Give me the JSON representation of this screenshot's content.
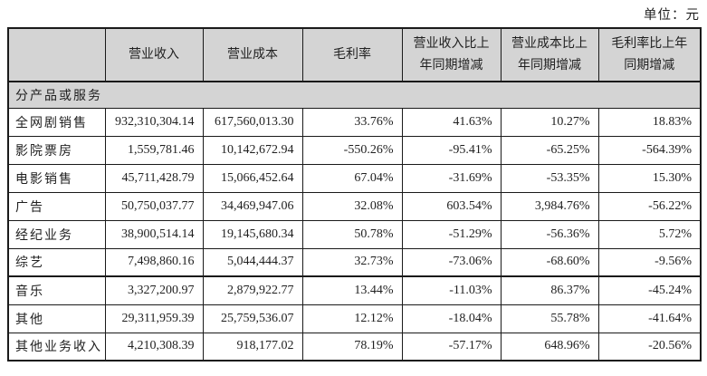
{
  "unit_label": "单位：元",
  "colors": {
    "header_bg": "#d4d4d4",
    "border_color": "#1a1a1a",
    "text_color": "#1f1f1f",
    "page_bg": "#ffffff"
  },
  "table": {
    "headers": [
      "",
      "营业收入",
      "营业成本",
      "毛利率",
      "营业收入比上\n年同期增减",
      "营业成本比上\n年同期增减",
      "毛利率比上年\n同期增减"
    ],
    "section_header": "分产品或服务",
    "rows": [
      {
        "label": "全网剧销售",
        "revenue": "932,310,304.14",
        "cost": "617,560,013.30",
        "margin": "33.76%",
        "revenue_yoy": "41.63%",
        "cost_yoy": "10.27%",
        "margin_yoy": "18.83%"
      },
      {
        "label": "影院票房",
        "revenue": "1,559,781.46",
        "cost": "10,142,672.94",
        "margin": "-550.26%",
        "revenue_yoy": "-95.41%",
        "cost_yoy": "-65.25%",
        "margin_yoy": "-564.39%"
      },
      {
        "label": "电影销售",
        "revenue": "45,711,428.79",
        "cost": "15,066,452.64",
        "margin": "67.04%",
        "revenue_yoy": "-31.69%",
        "cost_yoy": "-53.35%",
        "margin_yoy": "15.30%"
      },
      {
        "label": "广告",
        "revenue": "50,750,037.77",
        "cost": "34,469,947.06",
        "margin": "32.08%",
        "revenue_yoy": "603.54%",
        "cost_yoy": "3,984.76%",
        "margin_yoy": "-56.22%"
      },
      {
        "label": "经纪业务",
        "revenue": "38,900,514.14",
        "cost": "19,145,680.34",
        "margin": "50.78%",
        "revenue_yoy": "-51.29%",
        "cost_yoy": "-56.36%",
        "margin_yoy": "5.72%"
      },
      {
        "label": "综艺",
        "revenue": "7,498,860.16",
        "cost": "5,044,444.37",
        "margin": "32.73%",
        "revenue_yoy": "-73.06%",
        "cost_yoy": "-68.60%",
        "margin_yoy": "-9.56%"
      },
      {
        "label": "音乐",
        "revenue": "3,327,200.97",
        "cost": "2,879,922.77",
        "margin": "13.44%",
        "revenue_yoy": "-11.03%",
        "cost_yoy": "86.37%",
        "margin_yoy": "-45.24%"
      },
      {
        "label": "其他",
        "revenue": "29,311,959.39",
        "cost": "25,759,536.07",
        "margin": "12.12%",
        "revenue_yoy": "-18.04%",
        "cost_yoy": "55.78%",
        "margin_yoy": "-41.64%"
      },
      {
        "label": "其他业务收入",
        "revenue": "4,210,308.39",
        "cost": "918,177.02",
        "margin": "78.19%",
        "revenue_yoy": "-57.17%",
        "cost_yoy": "648.96%",
        "margin_yoy": "-20.56%"
      }
    ]
  }
}
